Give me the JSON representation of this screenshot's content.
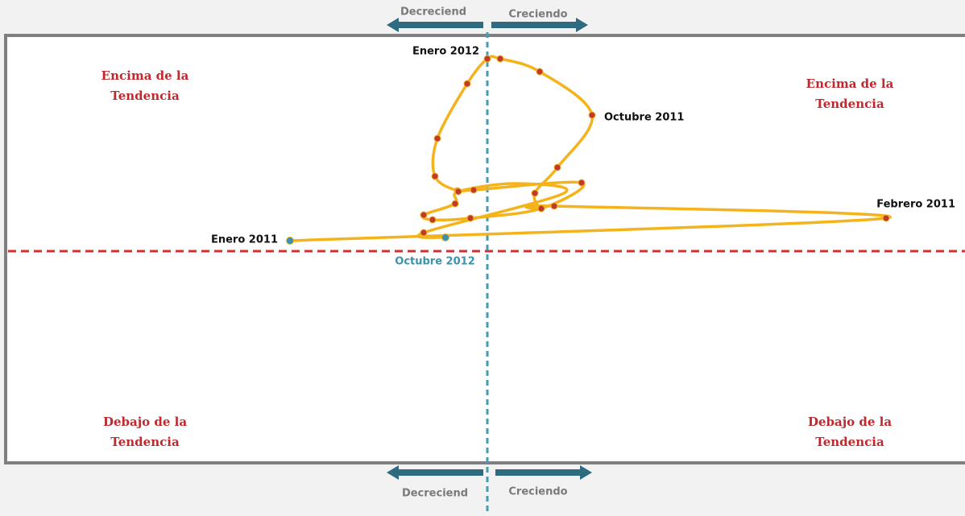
{
  "quadrants": {
    "top_left": [
      "Encima de la",
      "Tendencia"
    ],
    "top_right": [
      "Encima de la",
      "Tendencia"
    ],
    "bottom_left": [
      "Debajo de la",
      "Tendencia"
    ],
    "bottom_right": [
      "Debajo de la",
      "Tendencia"
    ]
  },
  "arrows": {
    "top": {
      "left": "Decreciend",
      "right": "Creciendo"
    },
    "bottom": {
      "left": "Decreciend",
      "right": "Creciendo"
    }
  },
  "point_labels": {
    "start": "Enero 2011",
    "feb": "Febrero 2011",
    "oct": "Octubre 2011",
    "jan": "Enero 2012",
    "end": "Octubre 2012"
  }
}
